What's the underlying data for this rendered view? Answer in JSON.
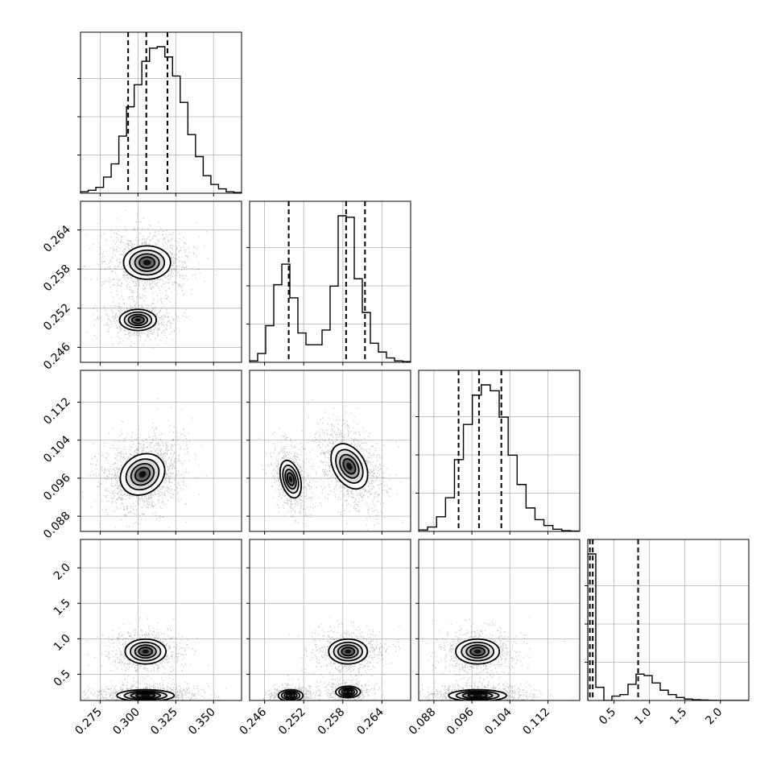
{
  "chart_data": {
    "type": "corner",
    "params": [
      {
        "axis_ticks": [
          "0.275",
          "0.300",
          "0.325",
          "0.350"
        ],
        "tick_values": [
          0.275,
          0.3,
          0.325,
          0.35
        ],
        "range": [
          0.262,
          0.3685
        ]
      },
      {
        "axis_ticks": [
          "0.246",
          "0.252",
          "0.258",
          "0.264"
        ],
        "tick_values": [
          0.246,
          0.252,
          0.258,
          0.264
        ],
        "range": [
          0.2437,
          0.2684
        ]
      },
      {
        "axis_ticks": [
          "0.088",
          "0.096",
          "0.104",
          "0.112"
        ],
        "tick_values": [
          0.088,
          0.096,
          0.104,
          0.112
        ],
        "range": [
          0.0848,
          0.1187
        ]
      },
      {
        "axis_ticks": [
          "0.5",
          "1.0",
          "1.5",
          "2.0"
        ],
        "tick_values": [
          0.5,
          1.0,
          1.5,
          2.0
        ],
        "range": [
          0.13,
          2.4
        ]
      }
    ],
    "quantiles": [
      [
        0.2935,
        0.3055,
        0.3195
      ],
      [
        0.2497,
        0.2585,
        0.2614
      ],
      [
        0.0932,
        0.0975,
        0.1022
      ],
      [
        0.16,
        0.2,
        0.84
      ]
    ],
    "histograms": [
      {
        "edges_start": 0.262,
        "edges_end": 0.3685,
        "counts": [
          0.01,
          0.02,
          0.04,
          0.11,
          0.2,
          0.39,
          0.59,
          0.74,
          0.9,
          0.99,
          1.0,
          0.93,
          0.8,
          0.62,
          0.4,
          0.25,
          0.12,
          0.06,
          0.03,
          0.01,
          0.005
        ]
      },
      {
        "edges_start": 0.2437,
        "edges_end": 0.2684,
        "counts": [
          0.01,
          0.06,
          0.25,
          0.53,
          0.67,
          0.44,
          0.2,
          0.12,
          0.12,
          0.22,
          0.52,
          1.0,
          0.99,
          0.57,
          0.34,
          0.13,
          0.07,
          0.03,
          0.01,
          0.005
        ]
      },
      {
        "edges_start": 0.0848,
        "edges_end": 0.1187,
        "counts": [
          0.01,
          0.03,
          0.1,
          0.23,
          0.49,
          0.73,
          0.93,
          1.0,
          0.96,
          0.78,
          0.52,
          0.32,
          0.16,
          0.08,
          0.04,
          0.015,
          0.005,
          0.002
        ]
      },
      {
        "edges_start": 0.13,
        "edges_end": 2.4,
        "counts": [
          1.0,
          0.09,
          0.0,
          0.03,
          0.04,
          0.11,
          0.18,
          0.17,
          0.12,
          0.07,
          0.04,
          0.02,
          0.01,
          0.005,
          0.003,
          0.001,
          0.0,
          0.0,
          0.0,
          0.0
        ]
      }
    ]
  }
}
